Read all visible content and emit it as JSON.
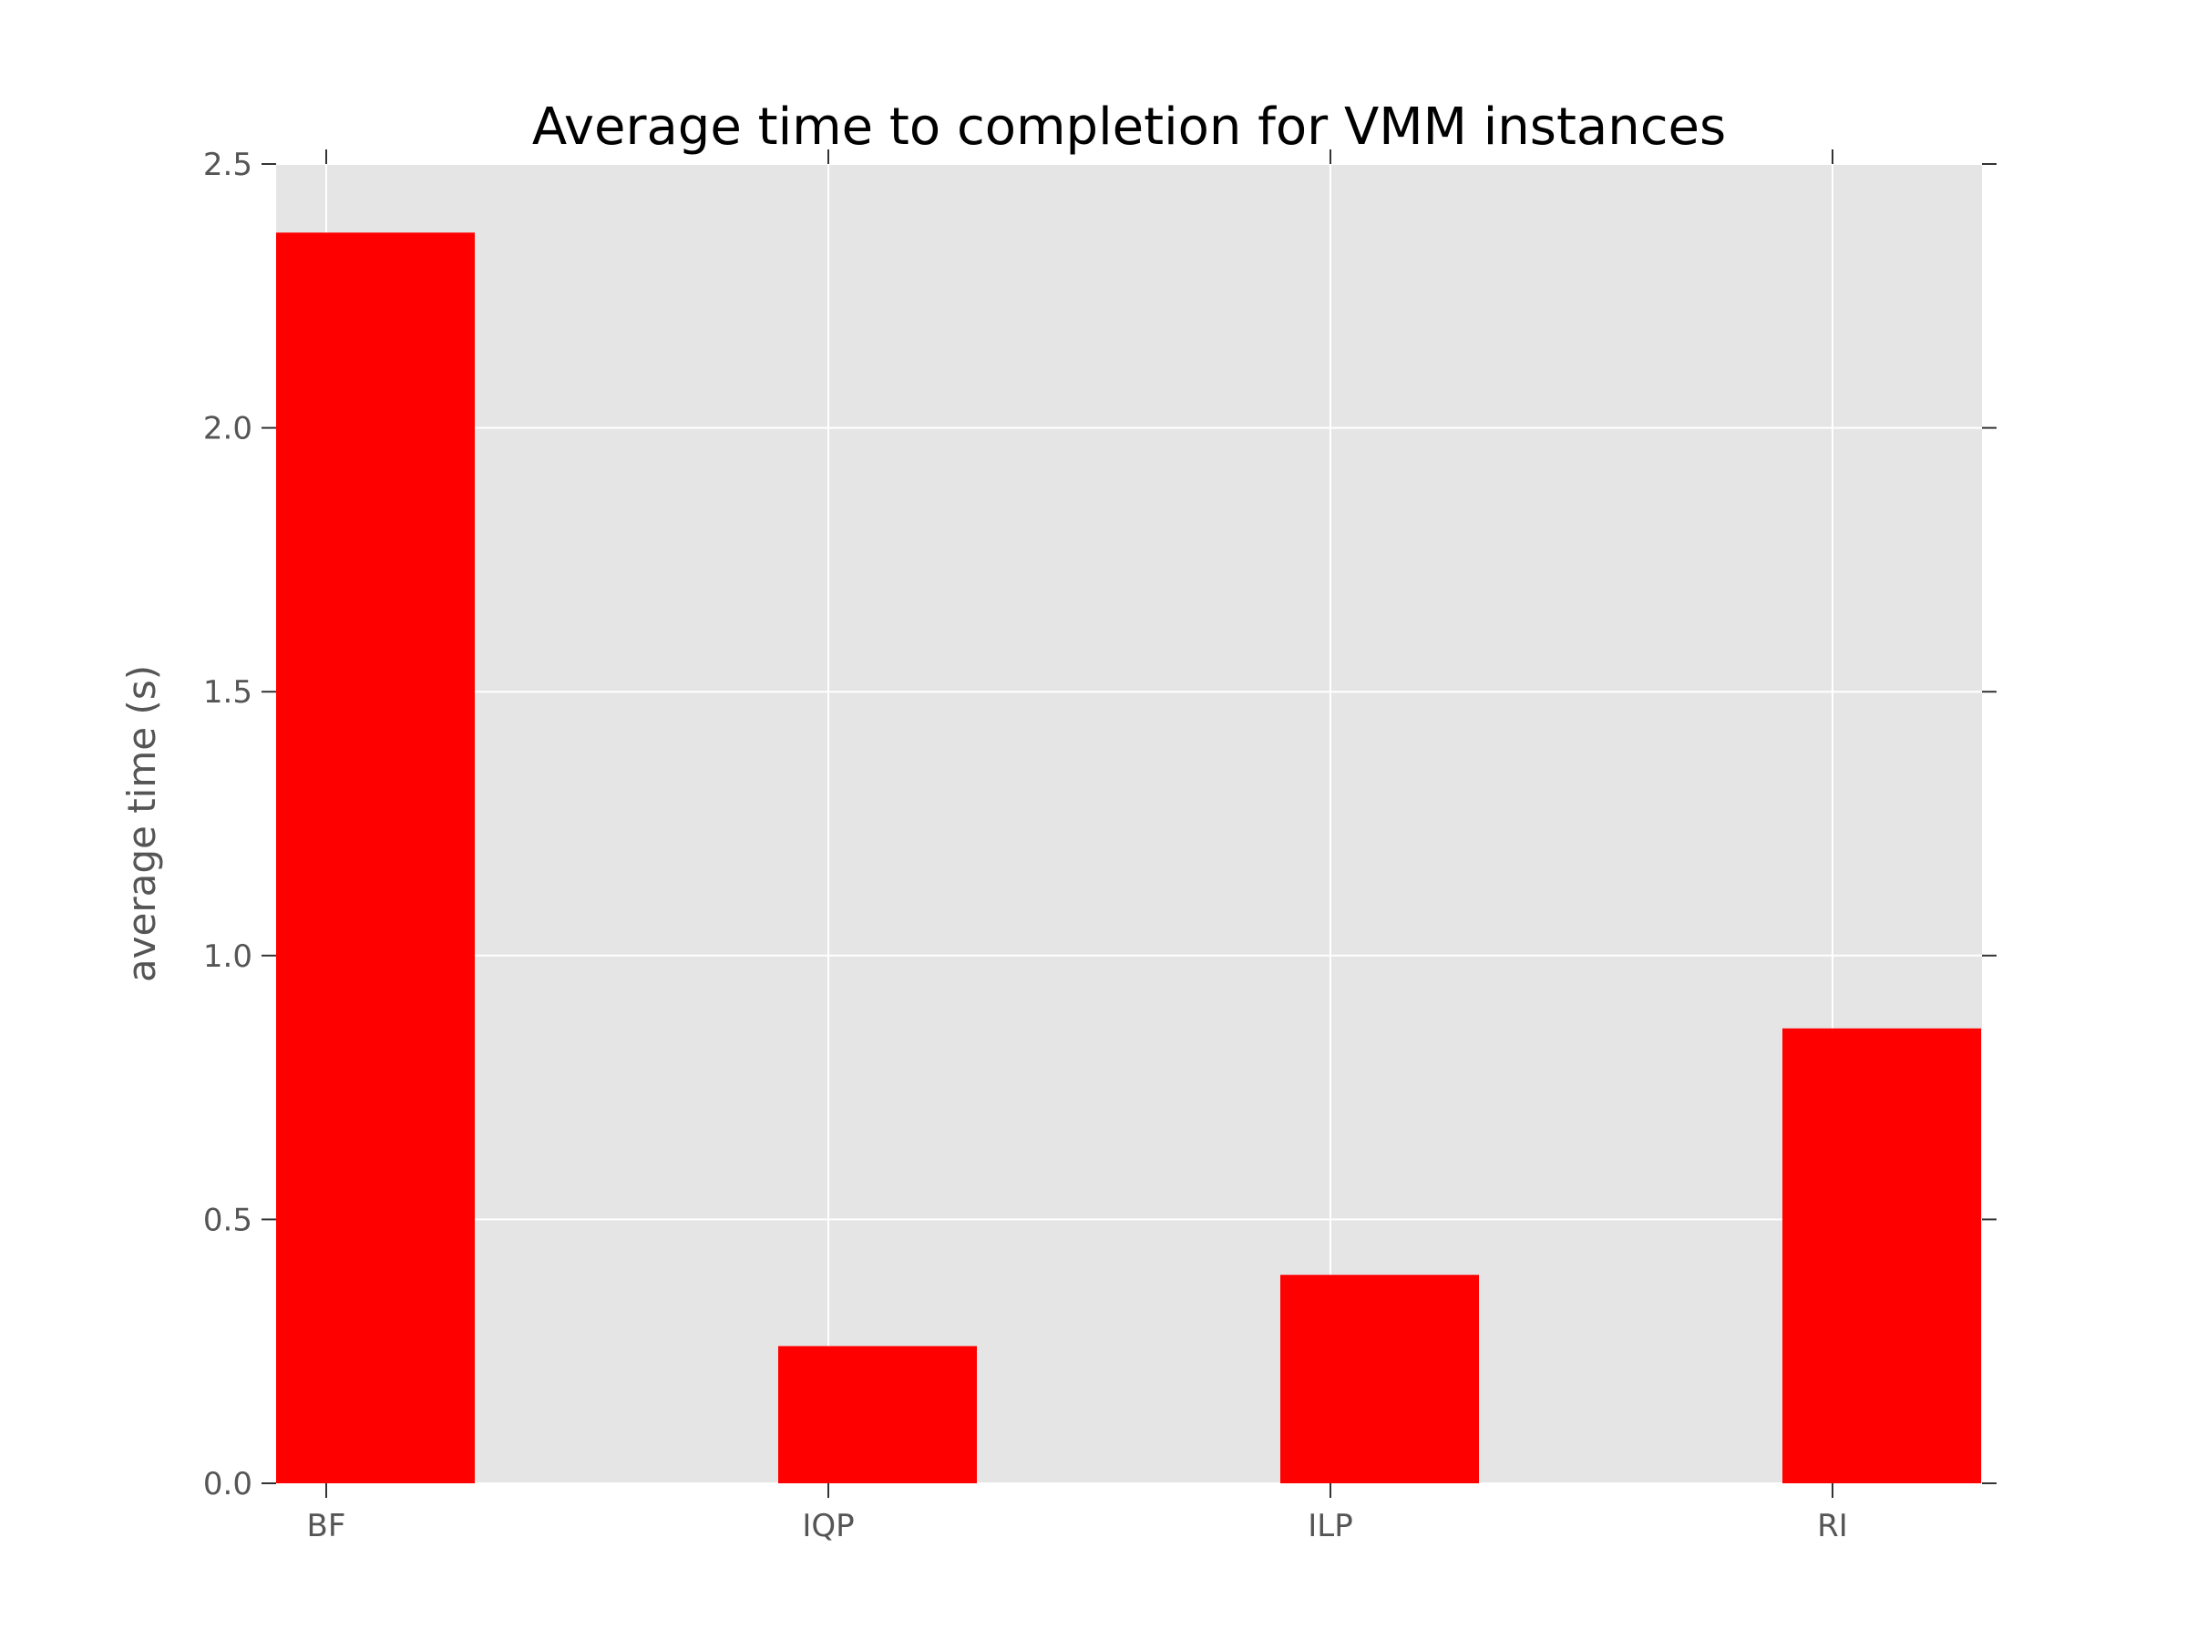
{
  "chart_data": {
    "type": "bar",
    "title": "Average time to completion for VMM instances",
    "xlabel": "",
    "ylabel": "average time (s)",
    "categories": [
      "BF",
      "IQP",
      "ILP",
      "RI"
    ],
    "values": [
      2.37,
      0.26,
      0.395,
      0.862
    ],
    "ylim": [
      0,
      2.5
    ],
    "yticks": [
      "0.0",
      "0.5",
      "1.0",
      "1.5",
      "2.0",
      "2.5"
    ],
    "grid": true,
    "bar_color": "#ff0000",
    "background_color": "#e5e5e5",
    "grid_color": "#ffffff"
  }
}
